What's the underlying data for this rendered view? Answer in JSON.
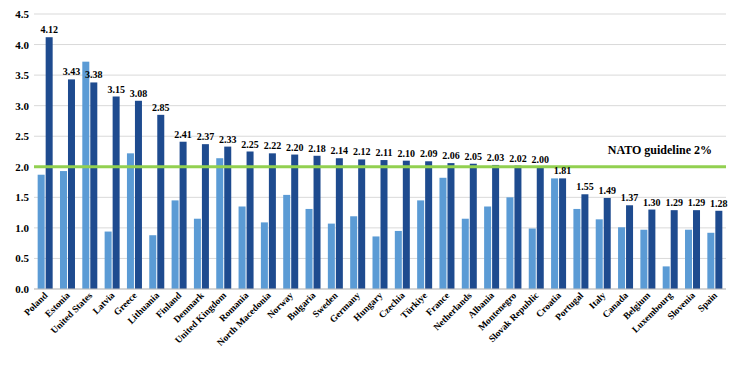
{
  "chart_data": {
    "type": "bar",
    "categories": [
      "Poland",
      "Estonia",
      "United States",
      "Latvia",
      "Greece",
      "Lithuania",
      "Finland",
      "Denmark",
      "United Kingdom",
      "Romania",
      "North Macedonia",
      "Norway",
      "Bulgaria",
      "Sweden",
      "Germany",
      "Hungary",
      "Czechia",
      "Türkiye",
      "France",
      "Netherlands",
      "Albania",
      "Montenegro",
      "Slovak Republic",
      "Croatia",
      "Portugal",
      "Italy",
      "Canada",
      "Belgium",
      "Luxembourg",
      "Slovenia",
      "Spain"
    ],
    "series": [
      {
        "color": "#5b9bd5",
        "values": [
          1.87,
          1.93,
          3.72,
          0.94,
          2.22,
          0.88,
          1.45,
          1.15,
          2.14,
          1.35,
          1.09,
          1.54,
          1.31,
          1.07,
          1.19,
          0.86,
          0.95,
          1.45,
          1.82,
          1.15,
          1.35,
          1.5,
          0.99,
          1.81,
          1.31,
          1.14,
          1.01,
          0.97,
          0.37,
          0.97,
          0.92
        ]
      },
      {
        "color": "#1e4b8f",
        "data_labels": true,
        "values": [
          4.12,
          3.43,
          3.38,
          3.15,
          3.08,
          2.85,
          2.41,
          2.37,
          2.33,
          2.25,
          2.22,
          2.2,
          2.18,
          2.14,
          2.12,
          2.11,
          2.1,
          2.09,
          2.06,
          2.05,
          2.03,
          2.02,
          2.0,
          1.81,
          1.55,
          1.49,
          1.37,
          1.3,
          1.29,
          1.29,
          1.28
        ],
        "value_labels": [
          "4.12",
          "3.43",
          "3.38",
          "3.15",
          "3.08",
          "2.85",
          "2.41",
          "2.37",
          "2.33",
          "2.25",
          "2.22",
          "2.20",
          "2.18",
          "2.14",
          "2.12",
          "2.11",
          "2.10",
          "2.09",
          "2.06",
          "2.05",
          "2.03",
          "2.02",
          "2.00",
          "1.81",
          "1.55",
          "1.49",
          "1.37",
          "1.30",
          "1.29",
          "1.29",
          "1.28"
        ]
      }
    ],
    "ylim": [
      0,
      4.5
    ],
    "yticks": [
      {
        "value": 0,
        "label": "0.0"
      },
      0.5,
      {
        "value": 1,
        "label": "1.0"
      },
      1.5,
      {
        "value": 2,
        "label": "2.0"
      },
      2.5,
      {
        "value": 3,
        "label": "3.0"
      },
      3.5,
      {
        "value": 4,
        "label": "4.0"
      },
      4.5
    ],
    "grid": true,
    "annotations": [
      {
        "text": "NATO guideline 2%",
        "value": 2,
        "color": "#92d050"
      }
    ]
  }
}
